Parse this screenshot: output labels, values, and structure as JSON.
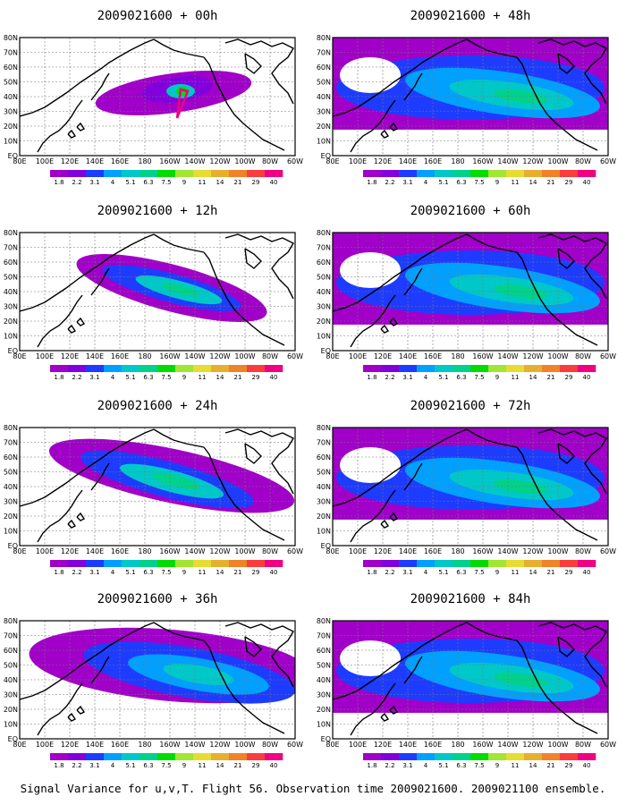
{
  "chart_data": [
    {
      "type": "heatmap",
      "title": "2009021600 + 00h",
      "extent": "north-pacific-core"
    },
    {
      "type": "heatmap",
      "title": "2009021600 + 48h",
      "extent": "wide"
    },
    {
      "type": "heatmap",
      "title": "2009021600 + 12h",
      "extent": "pacific-spread"
    },
    {
      "type": "heatmap",
      "title": "2009021600 + 60h",
      "extent": "wide"
    },
    {
      "type": "heatmap",
      "title": "2009021600 + 24h",
      "extent": "pacific-spread-east"
    },
    {
      "type": "heatmap",
      "title": "2009021600 + 72h",
      "extent": "wide"
    },
    {
      "type": "heatmap",
      "title": "2009021600 + 36h",
      "extent": "pacific-wide"
    },
    {
      "type": "heatmap",
      "title": "2009021600 + 84h",
      "extent": "wide"
    }
  ],
  "x_ticks": [
    "80E",
    "100E",
    "120E",
    "140E",
    "160E",
    "180",
    "160W",
    "140W",
    "120W",
    "100W",
    "80W",
    "60W"
  ],
  "y_ticks": [
    "80N",
    "70N",
    "60N",
    "50N",
    "40N",
    "30N",
    "20N",
    "10N",
    "EQ"
  ],
  "colorbar": {
    "levels": [
      "1.8",
      "2.2",
      "3.1",
      "4",
      "5.1",
      "6.3",
      "7.5",
      "9",
      "11",
      "14",
      "21",
      "29",
      "40"
    ],
    "colors": [
      "#a000c8",
      "#8200dc",
      "#1e3cff",
      "#00a0ff",
      "#00c8c8",
      "#00d28c",
      "#00dc00",
      "#a0e632",
      "#e6dc32",
      "#e6af2d",
      "#f08228",
      "#fa3c3c",
      "#f00082"
    ]
  },
  "caption": "Signal Variance for u,v,T. Flight 56. Observation time 2009021600. 2009021100 ensemble."
}
